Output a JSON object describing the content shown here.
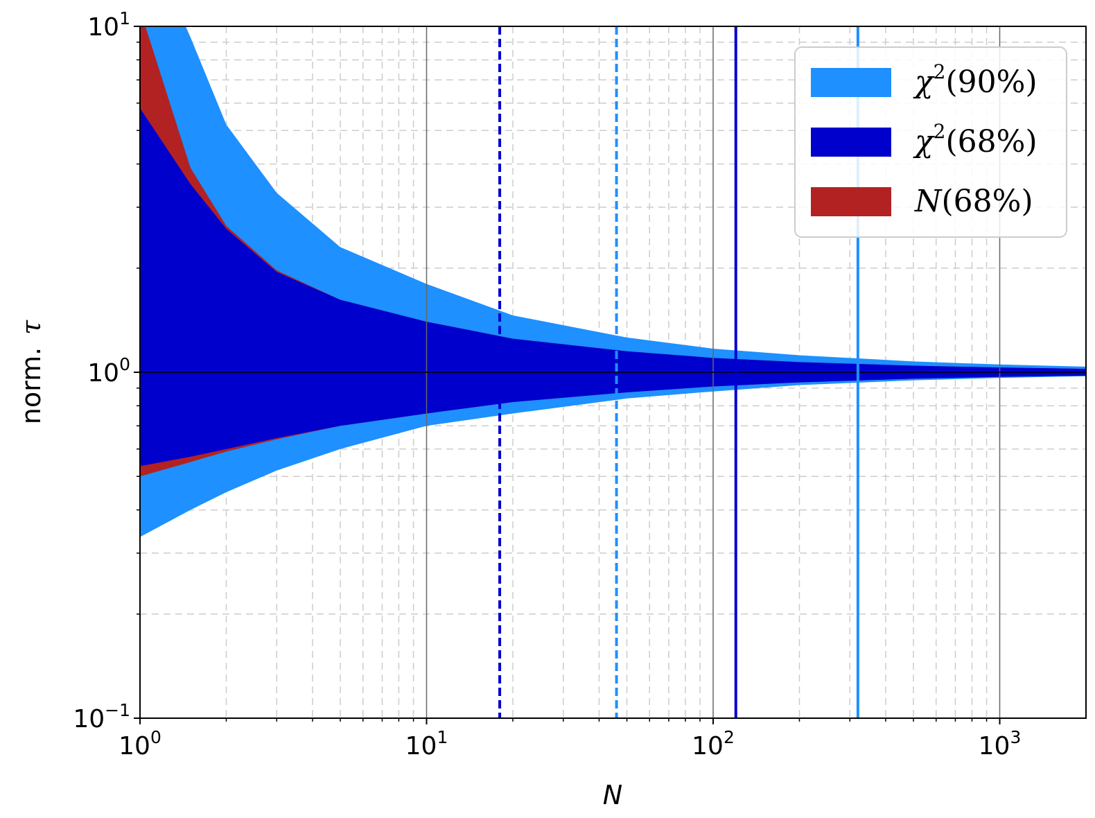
{
  "chart_data": {
    "type": "area",
    "title": "",
    "xlabel": "N",
    "ylabel_prefix": "norm.",
    "ylabel_symbol": "τ",
    "x_scale": "log",
    "y_scale": "log",
    "xlim": [
      1,
      2000
    ],
    "ylim": [
      0.1,
      10
    ],
    "x_ticks": [
      {
        "value": 1,
        "base": "10",
        "exp": "0"
      },
      {
        "value": 10,
        "base": "10",
        "exp": "1"
      },
      {
        "value": 100,
        "base": "10",
        "exp": "2"
      },
      {
        "value": 1000,
        "base": "10",
        "exp": "3"
      }
    ],
    "y_ticks": [
      {
        "value": 0.1,
        "base": "10",
        "exp": "−1"
      },
      {
        "value": 1,
        "base": "10",
        "exp": "0"
      },
      {
        "value": 10,
        "base": "10",
        "exp": "1"
      }
    ],
    "grid": true,
    "legend_position": "top-right",
    "series": [
      {
        "name_symbol": "χ",
        "name_sup": "2",
        "name_rest": "(90%)",
        "color": "#1e90ff",
        "x": [
          1,
          1.5,
          2,
          3,
          5,
          10,
          20,
          50,
          100,
          200,
          500,
          1000,
          2000
        ],
        "lower": [
          0.334,
          0.4,
          0.45,
          0.52,
          0.6,
          0.7,
          0.76,
          0.84,
          0.88,
          0.918,
          0.948,
          0.963,
          0.974
        ],
        "upper": [
          20,
          9.3,
          5.2,
          3.3,
          2.3,
          1.8,
          1.46,
          1.26,
          1.17,
          1.12,
          1.075,
          1.053,
          1.038
        ]
      },
      {
        "name_symbol": "N",
        "name_sup": "",
        "name_rest": "(68%)",
        "color": "#b22222",
        "x": [
          1,
          1.5,
          2,
          3,
          5,
          10,
          20,
          50,
          100,
          200,
          500,
          1000,
          2000
        ],
        "lower": [
          0.5,
          0.55,
          0.59,
          0.64,
          0.7,
          0.76,
          0.82,
          0.875,
          0.91,
          0.935,
          0.958,
          0.97,
          0.978
        ],
        "upper": [
          11.2,
          3.9,
          2.65,
          1.97,
          1.62,
          1.4,
          1.25,
          1.15,
          1.1,
          1.07,
          1.045,
          1.032,
          1.023
        ]
      },
      {
        "name_symbol": "χ",
        "name_sup": "2",
        "name_rest": "(68%)",
        "color": "#0000cd",
        "x": [
          1,
          1.5,
          2,
          3,
          5,
          10,
          20,
          50,
          100,
          200,
          500,
          1000,
          2000
        ],
        "lower": [
          0.535,
          0.57,
          0.6,
          0.645,
          0.7,
          0.76,
          0.82,
          0.875,
          0.91,
          0.935,
          0.958,
          0.97,
          0.978
        ],
        "upper": [
          5.8,
          3.5,
          2.6,
          1.95,
          1.62,
          1.4,
          1.25,
          1.15,
          1.1,
          1.07,
          1.045,
          1.032,
          1.023
        ]
      }
    ],
    "vertical_lines": [
      {
        "x": 18,
        "color": "#0000cd",
        "style": "dashed"
      },
      {
        "x": 46,
        "color": "#1e90ff",
        "style": "dashed"
      },
      {
        "x": 120,
        "color": "#0000cd",
        "style": "solid"
      },
      {
        "x": 320,
        "color": "#1e90ff",
        "style": "solid"
      }
    ]
  }
}
